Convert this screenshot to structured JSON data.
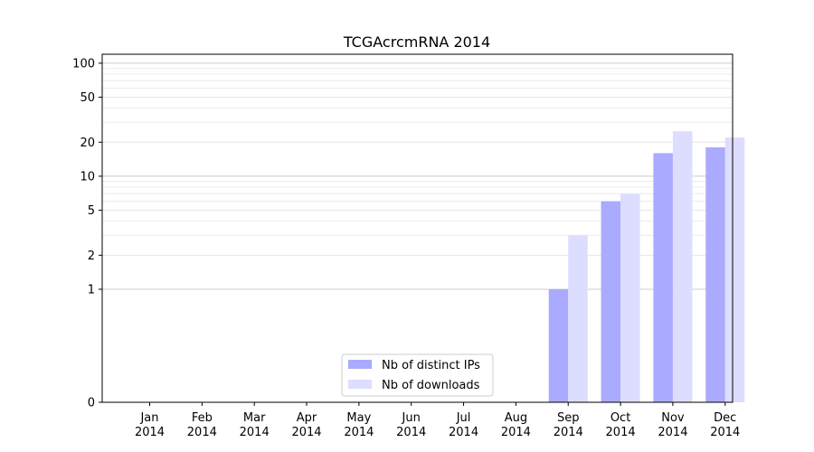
{
  "chart_data": {
    "type": "bar",
    "title": "TCGAcrcmRNA 2014",
    "xlabel": "",
    "ylabel": "",
    "y_scale": "symlog",
    "categories": [
      [
        "Jan",
        "2014"
      ],
      [
        "Feb",
        "2014"
      ],
      [
        "Mar",
        "2014"
      ],
      [
        "Apr",
        "2014"
      ],
      [
        "May",
        "2014"
      ],
      [
        "Jun",
        "2014"
      ],
      [
        "Jul",
        "2014"
      ],
      [
        "Aug",
        "2014"
      ],
      [
        "Sep",
        "2014"
      ],
      [
        "Oct",
        "2014"
      ],
      [
        "Nov",
        "2014"
      ],
      [
        "Dec",
        "2014"
      ]
    ],
    "series": [
      {
        "name": "Nb of distinct IPs",
        "color": "#aaaaff",
        "values": [
          0,
          0,
          0,
          0,
          0,
          0,
          0,
          0,
          1,
          6,
          16,
          18
        ]
      },
      {
        "name": "Nb of downloads",
        "color": "#ddddff",
        "values": [
          0,
          0,
          0,
          0,
          0,
          0,
          0,
          0,
          3,
          7,
          25,
          22
        ]
      }
    ],
    "y_ticks": [
      0,
      1,
      2,
      5,
      10,
      20,
      50,
      100
    ],
    "y_tick_labels": [
      "0",
      "1",
      "2",
      "5",
      "10",
      "20",
      "50",
      "100"
    ],
    "ylim": [
      0,
      120
    ],
    "grid": "horizontal",
    "legend_position": "bottom-center"
  }
}
